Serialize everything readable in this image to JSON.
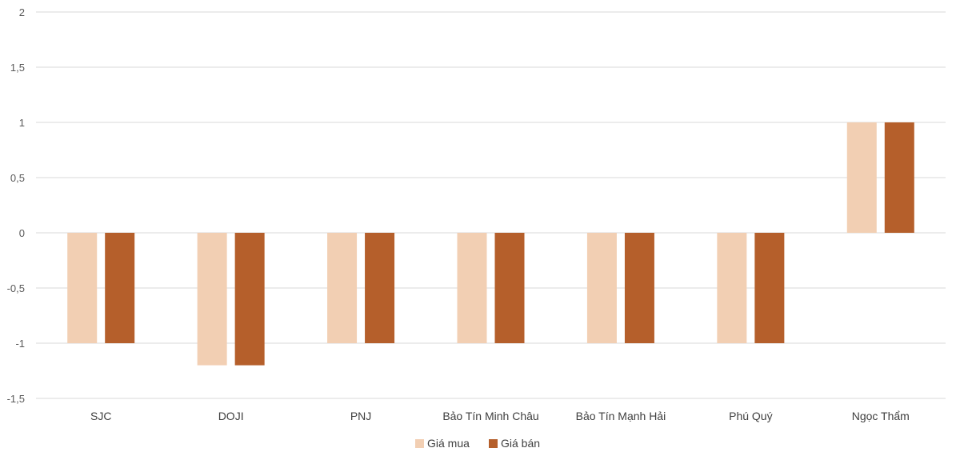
{
  "chart_data": {
    "type": "bar",
    "categories": [
      "SJC",
      "DOJI",
      "PNJ",
      "Bảo Tín Minh Châu",
      "Bảo Tín Mạnh Hải",
      "Phú Quý",
      "Ngọc Thẩm"
    ],
    "series": [
      {
        "name": "Giá mua",
        "color": "#f2cfb3",
        "values": [
          -1,
          -1.2,
          -1,
          -1,
          -1,
          -1,
          1
        ]
      },
      {
        "name": "Giá bán",
        "color": "#b55f2b",
        "values": [
          -1,
          -1.2,
          -1,
          -1,
          -1,
          -1,
          1
        ]
      }
    ],
    "yticks": [
      2,
      1.5,
      1,
      0.5,
      0,
      -0.5,
      -1,
      -1.5
    ],
    "ytick_labels": [
      "2",
      "1,5",
      "1",
      "0,5",
      "0",
      "-0,5",
      "-1",
      "-1,5"
    ],
    "ylim": [
      -1.5,
      2
    ],
    "grid": true,
    "legend_position": "bottom"
  }
}
